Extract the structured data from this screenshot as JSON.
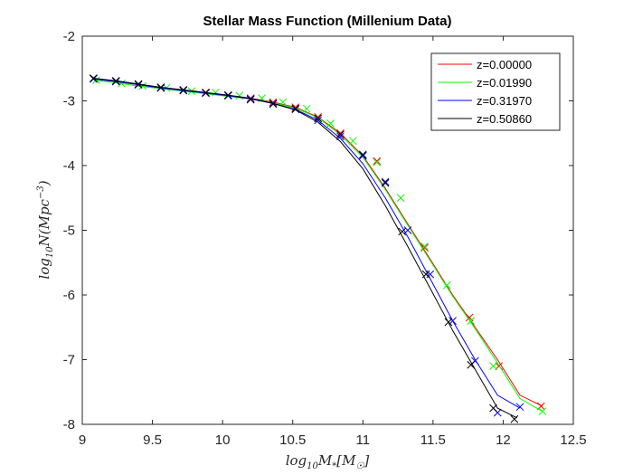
{
  "chart_data": {
    "type": "line",
    "title": "Stellar Mass Function (Millenium Data)",
    "xlabel": "log10M*[M☉]",
    "ylabel": "log10N(Mpc^-3)",
    "xlim": [
      9,
      12.5
    ],
    "ylim": [
      -8,
      -2
    ],
    "xticks": [
      "9",
      "9.5",
      "10",
      "10.5",
      "11",
      "11.5",
      "12",
      "12.5"
    ],
    "yticks": [
      "-2",
      "-3",
      "-4",
      "-5",
      "-6",
      "-7",
      "-8"
    ],
    "legend_position": "top-right",
    "grid": false,
    "series": [
      {
        "name": "z=0.00000",
        "color": "#ff0000",
        "line": {
          "x": [
            9.08,
            9.24,
            9.4,
            9.56,
            9.72,
            9.88,
            10.04,
            10.2,
            10.36,
            10.52,
            10.68,
            10.84,
            11.0,
            11.16,
            11.32,
            11.48,
            11.64,
            11.8,
            11.96,
            12.12,
            12.28
          ],
          "y": [
            -2.66,
            -2.7,
            -2.75,
            -2.8,
            -2.84,
            -2.88,
            -2.92,
            -2.96,
            -3.02,
            -3.1,
            -3.25,
            -3.5,
            -3.85,
            -4.35,
            -4.9,
            -5.45,
            -6.0,
            -6.5,
            -7.0,
            -7.55,
            -7.72
          ]
        },
        "markers": {
          "x": [
            9.08,
            9.24,
            9.4,
            9.56,
            9.72,
            9.88,
            10.04,
            10.2,
            10.36,
            10.52,
            10.68,
            10.84,
            11.1,
            11.44,
            11.76,
            11.97,
            12.27
          ],
          "y": [
            -2.66,
            -2.7,
            -2.75,
            -2.8,
            -2.84,
            -2.88,
            -2.92,
            -2.96,
            -3.02,
            -3.1,
            -3.25,
            -3.5,
            -3.93,
            -5.27,
            -6.35,
            -7.1,
            -7.72
          ]
        }
      },
      {
        "name": "z=0.01990",
        "color": "#00ff00",
        "line": {
          "x": [
            9.08,
            9.24,
            9.4,
            9.56,
            9.72,
            9.88,
            10.04,
            10.2,
            10.36,
            10.52,
            10.68,
            10.84,
            11.0,
            11.16,
            11.32,
            11.48,
            11.64,
            11.8,
            11.96,
            12.12,
            12.28
          ],
          "y": [
            -2.68,
            -2.72,
            -2.77,
            -2.81,
            -2.85,
            -2.89,
            -2.93,
            -2.97,
            -3.03,
            -3.11,
            -3.26,
            -3.52,
            -3.87,
            -4.37,
            -4.92,
            -5.47,
            -6.02,
            -6.52,
            -7.05,
            -7.6,
            -7.8
          ]
        },
        "markers": {
          "x": [
            9.1,
            9.28,
            9.43,
            9.6,
            9.78,
            9.95,
            10.12,
            10.28,
            10.43,
            10.6,
            10.77,
            10.93,
            11.1,
            11.27,
            11.44,
            11.6,
            11.77,
            11.93,
            12.28
          ],
          "y": [
            -2.68,
            -2.73,
            -2.77,
            -2.8,
            -2.85,
            -2.87,
            -2.92,
            -2.96,
            -3.02,
            -3.12,
            -3.35,
            -3.62,
            -3.95,
            -4.5,
            -5.25,
            -5.85,
            -6.4,
            -7.1,
            -7.8
          ]
        }
      },
      {
        "name": "z=0.31970",
        "color": "#0000ff",
        "line": {
          "x": [
            9.08,
            9.24,
            9.4,
            9.56,
            9.72,
            9.88,
            10.04,
            10.2,
            10.36,
            10.52,
            10.68,
            10.84,
            11.0,
            11.16,
            11.32,
            11.48,
            11.64,
            11.8,
            11.96,
            12.12
          ],
          "y": [
            -2.66,
            -2.7,
            -2.75,
            -2.8,
            -2.84,
            -2.88,
            -2.92,
            -2.97,
            -3.04,
            -3.13,
            -3.3,
            -3.58,
            -3.97,
            -4.5,
            -5.1,
            -5.75,
            -6.4,
            -7.0,
            -7.55,
            -7.75
          ]
        },
        "markers": {
          "x": [
            9.08,
            9.24,
            9.4,
            9.56,
            9.72,
            9.88,
            10.04,
            10.2,
            10.36,
            10.52,
            10.68,
            10.84,
            11.0,
            11.16,
            11.32,
            11.48,
            11.64,
            11.8,
            11.96,
            12.12
          ],
          "y": [
            -2.66,
            -2.7,
            -2.75,
            -2.8,
            -2.84,
            -2.88,
            -2.92,
            -2.97,
            -3.04,
            -3.13,
            -3.3,
            -3.55,
            -3.85,
            -4.25,
            -5.0,
            -5.68,
            -6.4,
            -7.02,
            -7.82,
            -7.73
          ]
        }
      },
      {
        "name": "z=0.50860",
        "color": "#000000",
        "line": {
          "x": [
            9.08,
            9.24,
            9.4,
            9.56,
            9.72,
            9.88,
            10.04,
            10.2,
            10.36,
            10.52,
            10.68,
            10.84,
            11.0,
            11.16,
            11.32,
            11.48,
            11.64,
            11.8,
            11.96,
            12.1
          ],
          "y": [
            -2.65,
            -2.69,
            -2.74,
            -2.79,
            -2.83,
            -2.87,
            -2.91,
            -2.96,
            -3.04,
            -3.14,
            -3.33,
            -3.63,
            -4.05,
            -4.62,
            -5.25,
            -5.9,
            -6.55,
            -7.15,
            -7.75,
            -7.9
          ]
        },
        "markers": {
          "x": [
            9.08,
            9.24,
            9.4,
            9.56,
            9.72,
            9.88,
            10.04,
            10.2,
            10.36,
            10.52,
            10.68,
            10.84,
            11.0,
            11.16,
            11.28,
            11.45,
            11.61,
            11.77,
            11.93,
            12.08
          ],
          "y": [
            -2.65,
            -2.69,
            -2.74,
            -2.79,
            -2.83,
            -2.87,
            -2.91,
            -2.98,
            -3.05,
            -3.12,
            -3.27,
            -3.52,
            -3.83,
            -4.27,
            -5.02,
            -5.68,
            -6.42,
            -7.08,
            -7.75,
            -7.92
          ]
        }
      }
    ]
  }
}
